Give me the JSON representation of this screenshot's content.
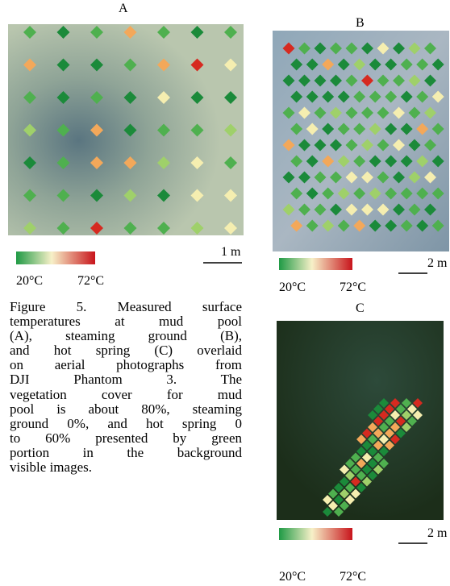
{
  "panels": [
    {
      "label": "A",
      "scale_bar": "1 m",
      "colorbar": {
        "min_label": "20°C",
        "max_label": "72°C"
      }
    },
    {
      "label": "B",
      "scale_bar": "2 m",
      "colorbar": {
        "min_label": "20°C",
        "max_label": "72°C"
      }
    },
    {
      "label": "C",
      "scale_bar": "2 m",
      "colorbar": {
        "min_label": "20°C",
        "max_label": "72°C"
      }
    }
  ],
  "caption": [
    "Figure 5. Measured surface",
    "temperatures at mud pool",
    "(A), steaming ground (B),",
    "and hot spring (C) overlaid",
    "on aerial photographs from",
    "DJI Phantom 3. The",
    "vegetation cover for mud",
    "pool is about 80%, steaming",
    "ground 0%, and hot spring 0",
    "to 60% presented by green",
    "portion in the background",
    "visible images."
  ]
}
